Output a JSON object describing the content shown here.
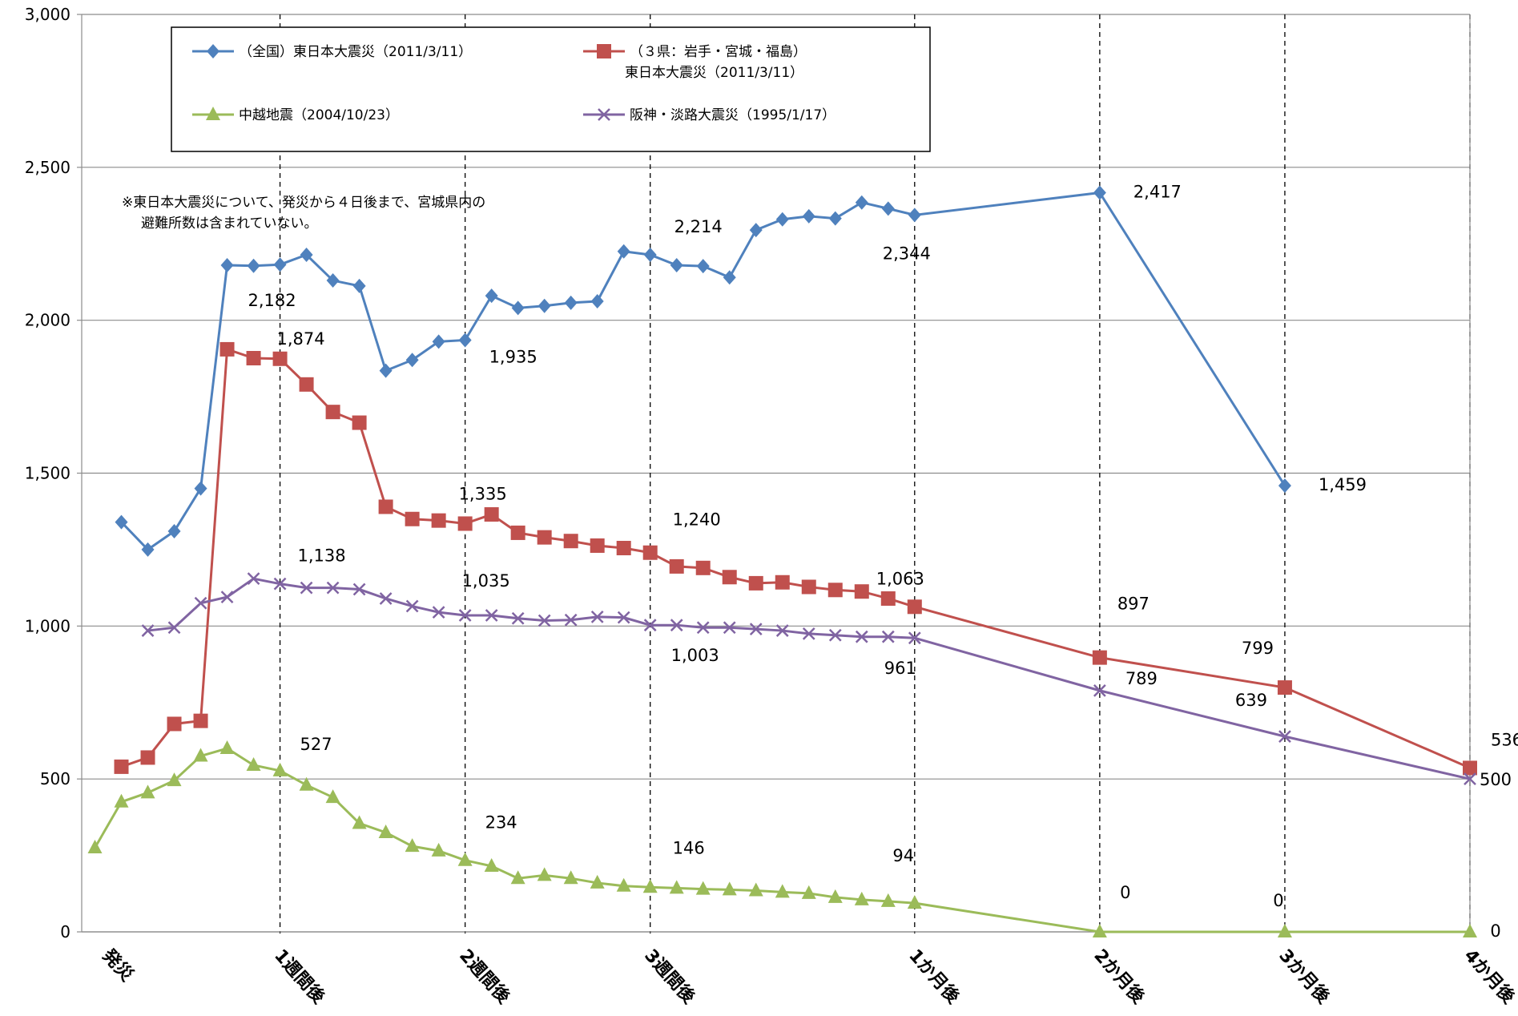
{
  "chart_data": {
    "type": "line",
    "ylim": [
      0,
      3000
    ],
    "y_ticks": [
      "0",
      "500",
      "1,000",
      "1,500",
      "2,000",
      "2,500",
      "3,000"
    ],
    "y_tick_values": [
      0,
      500,
      1000,
      1500,
      2000,
      2500,
      3000
    ],
    "x_tick_labels": [
      "発災",
      "1週間後",
      "2週間後",
      "3週間後",
      "1か月後",
      "2か月後",
      "3か月後",
      "4か月後"
    ],
    "x_tick_positions": [
      0.5,
      7,
      14,
      21,
      31,
      38,
      45,
      52
    ],
    "vertical_dashed_lines_at": [
      7,
      14,
      21,
      31,
      38,
      45,
      52
    ],
    "grid": true,
    "legend_position": "top-left inside plot",
    "note": [
      "※東日本大震災について、発災から４日後まで、宮城県内の",
      "避難所数は含まれていない。"
    ],
    "series": [
      {
        "name": "（全国）東日本大震災（2011/3/11）",
        "color": "#4f81bd",
        "marker": "diamond",
        "x": [
          1,
          2,
          3,
          4,
          5,
          6,
          7,
          8,
          9,
          10,
          11,
          12,
          13,
          14,
          15,
          16,
          17,
          18,
          19,
          20,
          21,
          22,
          23,
          24,
          25,
          26,
          27,
          28,
          29,
          30,
          31,
          38,
          45
        ],
        "values": [
          1340,
          1250,
          1310,
          1450,
          2180,
          2178,
          2182,
          2214,
          2130,
          2112,
          1835,
          1870,
          1930,
          1935,
          2080,
          2040,
          2047,
          2057,
          2062,
          2225,
          2214,
          2180,
          2177,
          2140,
          2295,
          2330,
          2340,
          2333,
          2385,
          2365,
          2344,
          2417,
          1459
        ],
        "labels": [
          {
            "i": 6,
            "text": "2,182"
          },
          {
            "i": 13,
            "text": "1,935"
          },
          {
            "i": 20,
            "text": "2,214"
          },
          {
            "i": 30,
            "text": "2,344"
          },
          {
            "i": 31,
            "text": "2,417"
          },
          {
            "i": 32,
            "text": "1,459"
          }
        ]
      },
      {
        "name": "（３県：岩手・宮城・福島）\n東日本大震災（2011/3/11）",
        "name_lines": [
          "（３県：岩手・宮城・福島）",
          "東日本大震災（2011/3/11）"
        ],
        "color": "#c0504d",
        "marker": "square",
        "x": [
          1,
          2,
          3,
          4,
          5,
          6,
          7,
          8,
          9,
          10,
          11,
          12,
          13,
          14,
          15,
          16,
          17,
          18,
          19,
          20,
          21,
          22,
          23,
          24,
          25,
          26,
          27,
          28,
          29,
          30,
          31,
          38,
          45,
          52
        ],
        "values": [
          540,
          570,
          680,
          690,
          1905,
          1876,
          1874,
          1790,
          1700,
          1665,
          1390,
          1350,
          1345,
          1335,
          1365,
          1305,
          1290,
          1278,
          1263,
          1255,
          1240,
          1195,
          1190,
          1160,
          1140,
          1143,
          1128,
          1118,
          1113,
          1090,
          1063,
          897,
          799,
          536
        ],
        "labels": [
          {
            "i": 6,
            "text": "1,874"
          },
          {
            "i": 13,
            "text": "1,335"
          },
          {
            "i": 20,
            "text": "1,240"
          },
          {
            "i": 30,
            "text": "1,063"
          },
          {
            "i": 31,
            "text": "897"
          },
          {
            "i": 32,
            "text": "799"
          },
          {
            "i": 33,
            "text": "536"
          }
        ]
      },
      {
        "name": "中越地震（2004/10/23）",
        "color": "#9bbb59",
        "marker": "triangle",
        "x": [
          0,
          1,
          2,
          3,
          4,
          5,
          6,
          7,
          8,
          9,
          10,
          11,
          12,
          13,
          14,
          15,
          16,
          17,
          18,
          19,
          20,
          21,
          22,
          23,
          24,
          25,
          26,
          27,
          28,
          29,
          30,
          31,
          38,
          45,
          52
        ],
        "values": [
          275,
          425,
          455,
          495,
          575,
          600,
          545,
          527,
          480,
          440,
          355,
          325,
          280,
          265,
          234,
          215,
          175,
          185,
          175,
          160,
          150,
          146,
          143,
          140,
          138,
          135,
          130,
          126,
          113,
          105,
          100,
          94,
          0,
          0,
          0
        ],
        "labels": [
          {
            "i": 7,
            "text": "527"
          },
          {
            "i": 14,
            "text": "234"
          },
          {
            "i": 21,
            "text": "146"
          },
          {
            "i": 31,
            "text": "94"
          },
          {
            "i": 32,
            "text": "0"
          },
          {
            "i": 33,
            "text": "0"
          },
          {
            "i": 34,
            "text": "0"
          }
        ]
      },
      {
        "name": "阪神・淡路大震災（1995/1/17）",
        "color": "#8064a2",
        "marker": "x",
        "x": [
          2,
          3,
          4,
          5,
          6,
          7,
          8,
          9,
          10,
          11,
          12,
          13,
          14,
          15,
          16,
          17,
          18,
          19,
          20,
          21,
          22,
          23,
          24,
          25,
          26,
          27,
          28,
          29,
          30,
          31,
          38,
          45,
          52
        ],
        "values": [
          985,
          995,
          1075,
          1095,
          1155,
          1138,
          1125,
          1125,
          1120,
          1090,
          1065,
          1045,
          1035,
          1035,
          1025,
          1018,
          1020,
          1030,
          1028,
          1003,
          1003,
          995,
          995,
          990,
          985,
          975,
          970,
          965,
          965,
          961,
          789,
          639,
          500
        ],
        "labels": [
          {
            "i": 5,
            "text": "1,138"
          },
          {
            "i": 12,
            "text": "1,035"
          },
          {
            "i": 19,
            "text": "1,003"
          },
          {
            "i": 29,
            "text": "961"
          },
          {
            "i": 30,
            "text": "789"
          },
          {
            "i": 31,
            "text": "639"
          },
          {
            "i": 32,
            "text": "500"
          }
        ]
      }
    ]
  }
}
